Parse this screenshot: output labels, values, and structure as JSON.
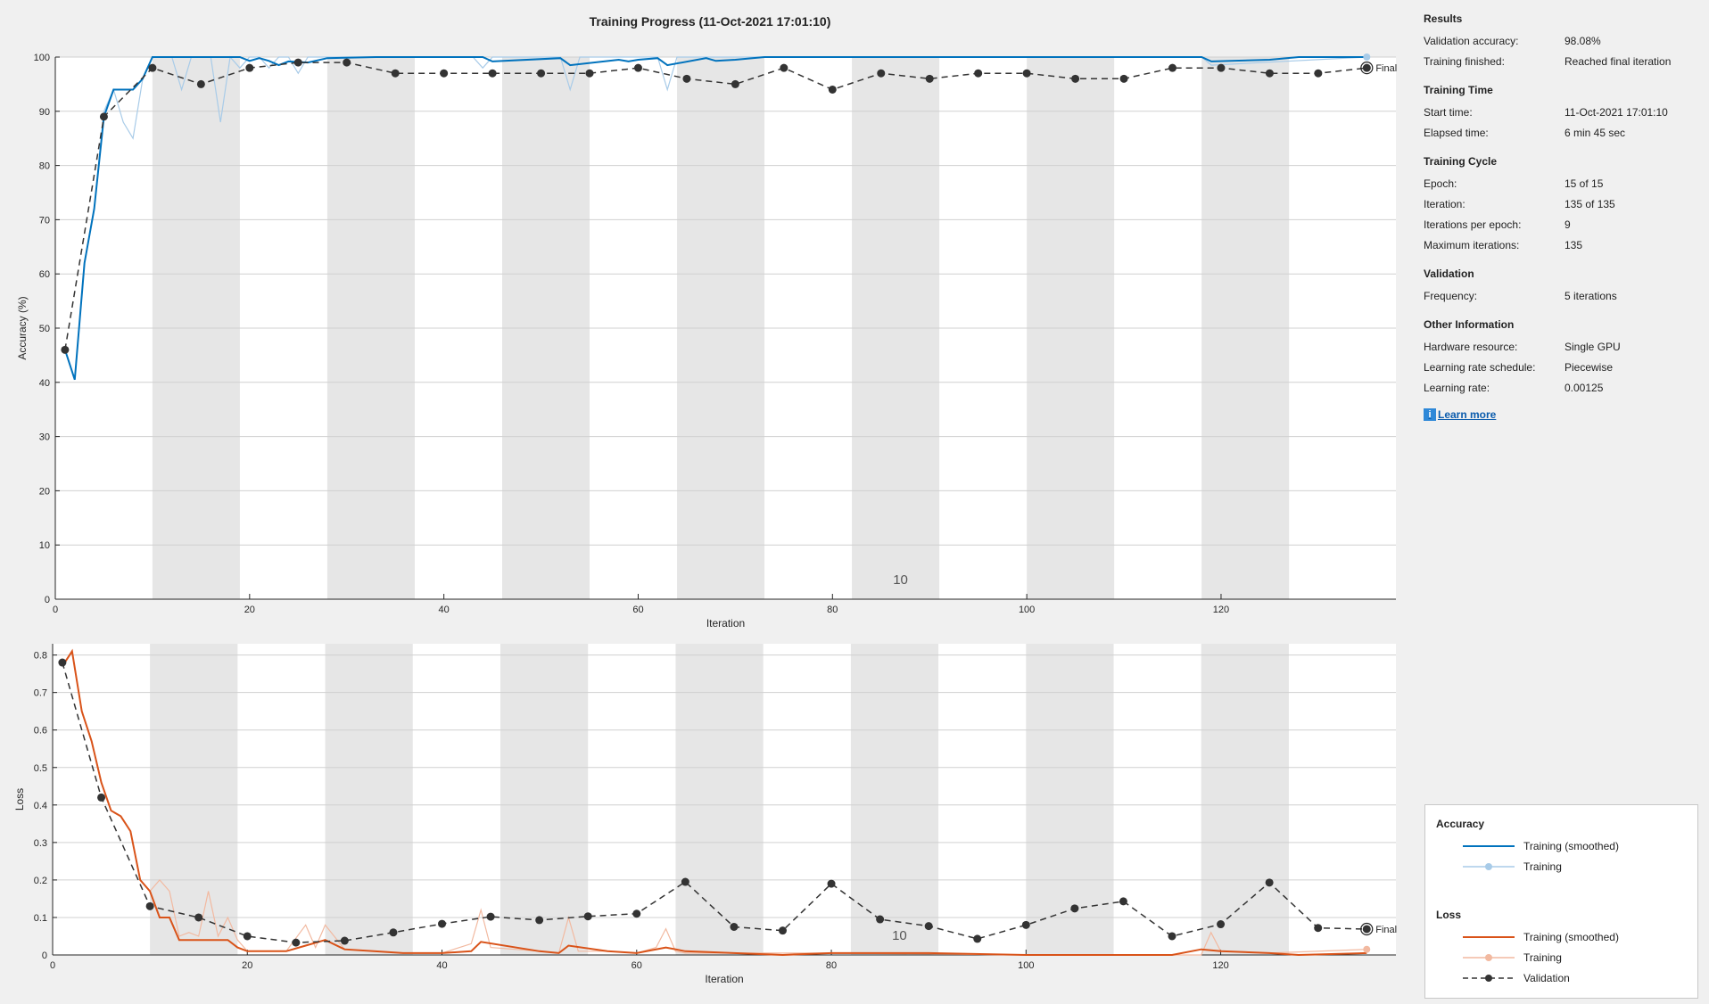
{
  "title": "Training Progress (11-Oct-2021 17:01:10)",
  "info": {
    "results": {
      "heading": "Results",
      "rows": [
        {
          "label": "Validation accuracy:",
          "value": "98.08%"
        },
        {
          "label": "Training finished:",
          "value": "Reached final iteration"
        }
      ]
    },
    "time": {
      "heading": "Training Time",
      "rows": [
        {
          "label": "Start time:",
          "value": "11-Oct-2021 17:01:10"
        },
        {
          "label": "Elapsed time:",
          "value": "6 min 45 sec"
        }
      ]
    },
    "cycle": {
      "heading": "Training Cycle",
      "rows": [
        {
          "label": "Epoch:",
          "value": "15 of 15"
        },
        {
          "label": "Iteration:",
          "value": "135 of 135"
        },
        {
          "label": "Iterations per epoch:",
          "value": "9"
        },
        {
          "label": "Maximum iterations:",
          "value": "135"
        }
      ]
    },
    "validation": {
      "heading": "Validation",
      "rows": [
        {
          "label": "Frequency:",
          "value": "5 iterations"
        }
      ]
    },
    "other": {
      "heading": "Other Information",
      "rows": [
        {
          "label": "Hardware resource:",
          "value": "Single GPU"
        },
        {
          "label": "Learning rate schedule:",
          "value": "Piecewise"
        },
        {
          "label": "Learning rate:",
          "value": "0.00125"
        }
      ]
    },
    "learn_more": "Learn more"
  },
  "legend": {
    "accuracy_heading": "Accuracy",
    "loss_heading": "Loss",
    "acc_smoothed": "Training (smoothed)",
    "acc_training": "Training",
    "loss_smoothed": "Training (smoothed)",
    "loss_training": "Training",
    "validation": "Validation"
  },
  "colors": {
    "acc_smoothed": "#0072bd",
    "acc_raw": "#a8cbe8",
    "loss_smoothed": "#d95319",
    "loss_raw": "#f2b9a0",
    "validation": "#333333",
    "epoch_shade": "#e6e6e6"
  },
  "chart_data": [
    {
      "type": "line",
      "title": "Training Progress (11-Oct-2021 17:01:10)",
      "xlabel": "Iteration",
      "ylabel": "Accuracy (%)",
      "xlim": [
        0,
        138
      ],
      "ylim": [
        0,
        100
      ],
      "xticks": [
        0,
        20,
        40,
        60,
        80,
        100,
        120
      ],
      "yticks": [
        0,
        10,
        20,
        30,
        40,
        50,
        60,
        70,
        80,
        90,
        100
      ],
      "grid": true,
      "epoch_label": "10",
      "final_label": "Final",
      "epoch_shaded_ranges": [
        [
          10,
          19
        ],
        [
          28,
          37
        ],
        [
          46,
          55
        ],
        [
          64,
          73
        ],
        [
          82,
          91
        ],
        [
          100,
          109
        ],
        [
          118,
          127
        ]
      ],
      "series": [
        {
          "name": "Training (smoothed)",
          "x": [
            1,
            2,
            3,
            4,
            5,
            6,
            7,
            8,
            9,
            10,
            15,
            19,
            20,
            21,
            22,
            23,
            24,
            26,
            28,
            33,
            44,
            45,
            52,
            53,
            58,
            59,
            60,
            62,
            63,
            67,
            68,
            70,
            73,
            80,
            100,
            118,
            119,
            125,
            128,
            135
          ],
          "y": [
            46,
            40.5,
            62,
            72,
            89,
            94,
            94,
            94,
            96,
            100,
            100,
            100,
            99.3,
            99.8,
            99.3,
            98.5,
            99.2,
            99,
            99.8,
            100,
            100,
            99.2,
            99.8,
            98.5,
            99.5,
            99.2,
            99.5,
            99.8,
            98.5,
            99.8,
            99.3,
            99.5,
            100,
            100,
            100,
            100,
            99.2,
            99.5,
            100,
            100
          ]
        },
        {
          "name": "Training",
          "x": [
            1,
            2,
            3,
            4,
            5,
            6,
            7,
            8,
            9,
            10,
            11,
            12,
            13,
            14,
            15,
            16,
            17,
            18,
            19,
            20,
            21,
            22,
            23,
            24,
            25,
            26,
            27,
            28,
            29,
            30,
            40,
            43,
            44,
            45,
            50,
            52,
            53,
            54,
            55,
            60,
            62,
            63,
            64,
            65,
            70,
            118,
            119,
            135
          ],
          "y": [
            46,
            40.5,
            62,
            72,
            90,
            94,
            88,
            85,
            96,
            100,
            100,
            100,
            94,
            100,
            100,
            100,
            88,
            100,
            98,
            100,
            100,
            98,
            100,
            100,
            97,
            100,
            100,
            100,
            100,
            100,
            100,
            100,
            98,
            100,
            100,
            100,
            94,
            100,
            100,
            100,
            100,
            94,
            100,
            100,
            100,
            100,
            98.5,
            100
          ]
        },
        {
          "name": "Validation",
          "x": [
            1,
            5,
            10,
            15,
            20,
            25,
            30,
            35,
            40,
            45,
            50,
            55,
            60,
            65,
            70,
            75,
            80,
            85,
            90,
            95,
            100,
            105,
            110,
            115,
            120,
            125,
            130,
            135
          ],
          "y": [
            46,
            89,
            98,
            95,
            98,
            99,
            99,
            97,
            97,
            97,
            97,
            97,
            98,
            96,
            95,
            98,
            94,
            97,
            96,
            97,
            97,
            96,
            96,
            98,
            98,
            97,
            97,
            98
          ]
        }
      ]
    },
    {
      "type": "line",
      "xlabel": "Iteration",
      "ylabel": "Loss",
      "xlim": [
        0,
        138
      ],
      "ylim": [
        0,
        0.83
      ],
      "xticks": [
        0,
        20,
        40,
        60,
        80,
        100,
        120
      ],
      "yticks": [
        0,
        0.1,
        0.2,
        0.3,
        0.4,
        0.5,
        0.6,
        0.7,
        0.8
      ],
      "grid": true,
      "epoch_label": "10",
      "final_label": "Final",
      "epoch_shaded_ranges": [
        [
          10,
          19
        ],
        [
          28,
          37
        ],
        [
          46,
          55
        ],
        [
          64,
          73
        ],
        [
          82,
          91
        ],
        [
          100,
          109
        ],
        [
          118,
          127
        ]
      ],
      "series": [
        {
          "name": "Training (smoothed)",
          "x": [
            1,
            2,
            3,
            4,
            5,
            6,
            7,
            8,
            9,
            10,
            11,
            12,
            13,
            14,
            15,
            16,
            17,
            18,
            19,
            20,
            24,
            26,
            28,
            30,
            33,
            36,
            40,
            43,
            44,
            50,
            52,
            53,
            57,
            60,
            63,
            65,
            70,
            75,
            80,
            90,
            100,
            115,
            118,
            120,
            125,
            128,
            135
          ],
          "y": [
            0.77,
            0.81,
            0.65,
            0.57,
            0.46,
            0.385,
            0.37,
            0.33,
            0.2,
            0.17,
            0.1,
            0.1,
            0.04,
            0.04,
            0.04,
            0.04,
            0.04,
            0.04,
            0.02,
            0.01,
            0.01,
            0.025,
            0.04,
            0.015,
            0.01,
            0.005,
            0.005,
            0.01,
            0.035,
            0.01,
            0.005,
            0.025,
            0.01,
            0.005,
            0.02,
            0.01,
            0.005,
            0,
            0.005,
            0.005,
            0,
            0,
            0.015,
            0.01,
            0.005,
            0,
            0.005
          ]
        },
        {
          "name": "Training",
          "x": [
            1,
            2,
            3,
            4,
            5,
            6,
            7,
            8,
            9,
            10,
            11,
            12,
            13,
            14,
            15,
            16,
            17,
            18,
            19,
            20,
            24,
            26,
            27,
            28,
            30,
            33,
            36,
            40,
            43,
            44,
            45,
            50,
            52,
            53,
            54,
            57,
            60,
            62,
            63,
            64,
            65,
            70,
            80,
            100,
            118,
            119,
            120,
            125,
            135
          ],
          "y": [
            0.77,
            0.81,
            0.65,
            0.57,
            0.46,
            0.385,
            0.37,
            0.33,
            0.2,
            0.17,
            0.2,
            0.17,
            0.05,
            0.06,
            0.05,
            0.17,
            0.05,
            0.1,
            0.04,
            0.01,
            0.01,
            0.08,
            0.02,
            0.08,
            0.015,
            0.01,
            0.005,
            0.005,
            0.03,
            0.12,
            0.02,
            0.01,
            0.005,
            0.1,
            0.01,
            0.01,
            0.005,
            0.02,
            0.07,
            0.01,
            0.005,
            0.005,
            0.005,
            0,
            0,
            0.06,
            0.01,
            0.005,
            0.015
          ]
        },
        {
          "name": "Validation",
          "x": [
            1,
            5,
            10,
            15,
            20,
            25,
            30,
            35,
            40,
            45,
            50,
            55,
            60,
            65,
            70,
            75,
            80,
            85,
            90,
            95,
            100,
            105,
            110,
            115,
            120,
            125,
            130,
            135
          ],
          "y": [
            0.78,
            0.42,
            0.13,
            0.1,
            0.05,
            0.033,
            0.038,
            0.06,
            0.083,
            0.102,
            0.093,
            0.103,
            0.11,
            0.195,
            0.075,
            0.065,
            0.19,
            0.095,
            0.077,
            0.043,
            0.08,
            0.124,
            0.143,
            0.05,
            0.082,
            0.193,
            0.072,
            0.069
          ]
        }
      ]
    }
  ]
}
